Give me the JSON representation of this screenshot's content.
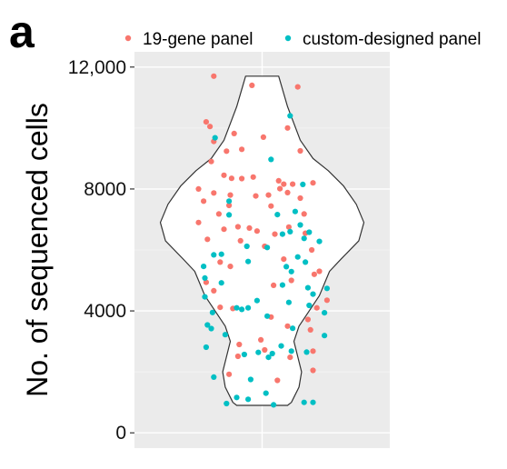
{
  "panel_label": "a",
  "chart_data": {
    "type": "violin",
    "ylabel": "No. of sequenced cells",
    "ylim": [
      -500,
      12500
    ],
    "yticks": [
      0,
      4000,
      8000,
      12000
    ],
    "ytick_labels": [
      "0",
      "4000",
      "8000",
      "12,000"
    ],
    "grid": true,
    "legend_position": "top",
    "series": [
      {
        "name": "19-gene panel",
        "color": "#F8766D",
        "points": [
          [
            -0.38,
            11700
          ],
          [
            -0.08,
            11400
          ],
          [
            0.28,
            11350
          ],
          [
            -0.44,
            10200
          ],
          [
            -0.41,
            10050
          ],
          [
            0.2,
            10000
          ],
          [
            -0.22,
            9820
          ],
          [
            -0.38,
            9560
          ],
          [
            0.01,
            9700
          ],
          [
            -0.28,
            9240
          ],
          [
            -0.16,
            9300
          ],
          [
            0.3,
            9250
          ],
          [
            -0.4,
            8900
          ],
          [
            -0.3,
            8450
          ],
          [
            -0.24,
            8350
          ],
          [
            -0.16,
            8340
          ],
          [
            -0.07,
            8390
          ],
          [
            0.13,
            8270
          ],
          [
            0.17,
            8160
          ],
          [
            0.24,
            8160
          ],
          [
            0.4,
            8200
          ],
          [
            0.14,
            8010
          ],
          [
            0.2,
            7880
          ],
          [
            -0.5,
            8000
          ],
          [
            -0.38,
            7870
          ],
          [
            -0.25,
            7800
          ],
          [
            -0.05,
            7770
          ],
          [
            0.05,
            7800
          ],
          [
            0.3,
            7700
          ],
          [
            -0.46,
            7600
          ],
          [
            -0.26,
            7460
          ],
          [
            0.07,
            7440
          ],
          [
            -0.34,
            7180
          ],
          [
            0.33,
            7180
          ],
          [
            -0.5,
            6900
          ],
          [
            -0.19,
            6760
          ],
          [
            -0.1,
            6720
          ],
          [
            0.21,
            6750
          ],
          [
            -0.3,
            6680
          ],
          [
            -0.04,
            6620
          ],
          [
            0.1,
            6520
          ],
          [
            0.34,
            6550
          ],
          [
            -0.43,
            6350
          ],
          [
            -0.17,
            6300
          ],
          [
            0.02,
            6120
          ],
          [
            0.39,
            6000
          ],
          [
            -0.33,
            5600
          ],
          [
            -0.25,
            5460
          ],
          [
            0.17,
            5700
          ],
          [
            0.45,
            5300
          ],
          [
            0.41,
            5200
          ],
          [
            0.23,
            5000
          ],
          [
            -0.44,
            4940
          ],
          [
            0.09,
            4840
          ],
          [
            -0.38,
            4660
          ],
          [
            0.51,
            4350
          ],
          [
            0.43,
            4100
          ],
          [
            -0.23,
            4080
          ],
          [
            -0.33,
            4120
          ],
          [
            0.07,
            3800
          ],
          [
            0.36,
            3720
          ],
          [
            0.2,
            3500
          ],
          [
            0.38,
            3380
          ],
          [
            -0.01,
            3050
          ],
          [
            -0.18,
            2900
          ],
          [
            0.02,
            2720
          ],
          [
            0.4,
            2680
          ],
          [
            -0.19,
            2510
          ],
          [
            0.22,
            2480
          ],
          [
            0.4,
            2050
          ],
          [
            -0.26,
            1920
          ],
          [
            0.12,
            1720
          ]
        ]
      },
      {
        "name": "custom-designed panel",
        "color": "#00BFC4",
        "points": [
          [
            0.22,
            10400
          ],
          [
            -0.37,
            9680
          ],
          [
            0.07,
            8970
          ],
          [
            0.32,
            8150
          ],
          [
            -0.26,
            7600
          ],
          [
            0.26,
            7260
          ],
          [
            -0.26,
            7150
          ],
          [
            0.12,
            7160
          ],
          [
            0.3,
            6820
          ],
          [
            0.37,
            6580
          ],
          [
            0.22,
            6600
          ],
          [
            0.16,
            6520
          ],
          [
            0.33,
            6380
          ],
          [
            0.45,
            6280
          ],
          [
            -0.12,
            6120
          ],
          [
            0.04,
            6080
          ],
          [
            -0.32,
            5860
          ],
          [
            -0.38,
            5840
          ],
          [
            0.28,
            5770
          ],
          [
            0.34,
            5600
          ],
          [
            -0.46,
            5460
          ],
          [
            -0.11,
            5620
          ],
          [
            0.19,
            5450
          ],
          [
            0.23,
            5290
          ],
          [
            -0.45,
            5080
          ],
          [
            -0.32,
            4920
          ],
          [
            0.16,
            4850
          ],
          [
            0.36,
            4760
          ],
          [
            0.51,
            4740
          ],
          [
            0.4,
            4550
          ],
          [
            -0.45,
            4460
          ],
          [
            -0.04,
            4340
          ],
          [
            0.21,
            4280
          ],
          [
            0.37,
            4180
          ],
          [
            -0.2,
            4100
          ],
          [
            -0.16,
            4050
          ],
          [
            -0.11,
            4100
          ],
          [
            -0.39,
            3950
          ],
          [
            0.49,
            3940
          ],
          [
            0.04,
            3830
          ],
          [
            -0.43,
            3540
          ],
          [
            -0.4,
            3420
          ],
          [
            0.24,
            3430
          ],
          [
            -0.29,
            3220
          ],
          [
            0.49,
            3190
          ],
          [
            0.15,
            2850
          ],
          [
            -0.44,
            2810
          ],
          [
            0.23,
            2680
          ],
          [
            0.35,
            2650
          ],
          [
            0.08,
            2600
          ],
          [
            -0.14,
            2570
          ],
          [
            0.05,
            2480
          ],
          [
            -0.03,
            2640
          ],
          [
            -0.38,
            1830
          ],
          [
            -0.09,
            1750
          ],
          [
            0.03,
            1300
          ],
          [
            -0.2,
            1160
          ],
          [
            -0.11,
            1100
          ],
          [
            0.33,
            1000
          ],
          [
            0.4,
            1000
          ],
          [
            -0.28,
            960
          ],
          [
            0.09,
            920
          ]
        ]
      }
    ],
    "violin_outline": [
      [
        -0.13,
        11700
      ],
      [
        0.13,
        11700
      ],
      [
        0.2,
        10700
      ],
      [
        0.3,
        9600
      ],
      [
        0.4,
        9000
      ],
      [
        0.52,
        8600
      ],
      [
        0.64,
        8100
      ],
      [
        0.74,
        7500
      ],
      [
        0.8,
        6900
      ],
      [
        0.76,
        6300
      ],
      [
        0.62,
        5700
      ],
      [
        0.53,
        5300
      ],
      [
        0.49,
        4900
      ],
      [
        0.45,
        4500
      ],
      [
        0.37,
        4000
      ],
      [
        0.29,
        3500
      ],
      [
        0.25,
        3000
      ],
      [
        0.28,
        2500
      ],
      [
        0.31,
        2000
      ],
      [
        0.29,
        1500
      ],
      [
        0.23,
        1000
      ],
      [
        0.2,
        900
      ],
      [
        -0.2,
        900
      ],
      [
        -0.23,
        1000
      ],
      [
        -0.29,
        1500
      ],
      [
        -0.31,
        2000
      ],
      [
        -0.28,
        2500
      ],
      [
        -0.25,
        3000
      ],
      [
        -0.29,
        3500
      ],
      [
        -0.37,
        4000
      ],
      [
        -0.45,
        4500
      ],
      [
        -0.49,
        4900
      ],
      [
        -0.53,
        5300
      ],
      [
        -0.62,
        5700
      ],
      [
        -0.76,
        6300
      ],
      [
        -0.8,
        6900
      ],
      [
        -0.74,
        7500
      ],
      [
        -0.64,
        8100
      ],
      [
        -0.52,
        8600
      ],
      [
        -0.4,
        9000
      ],
      [
        -0.3,
        9600
      ],
      [
        -0.2,
        10700
      ]
    ]
  }
}
